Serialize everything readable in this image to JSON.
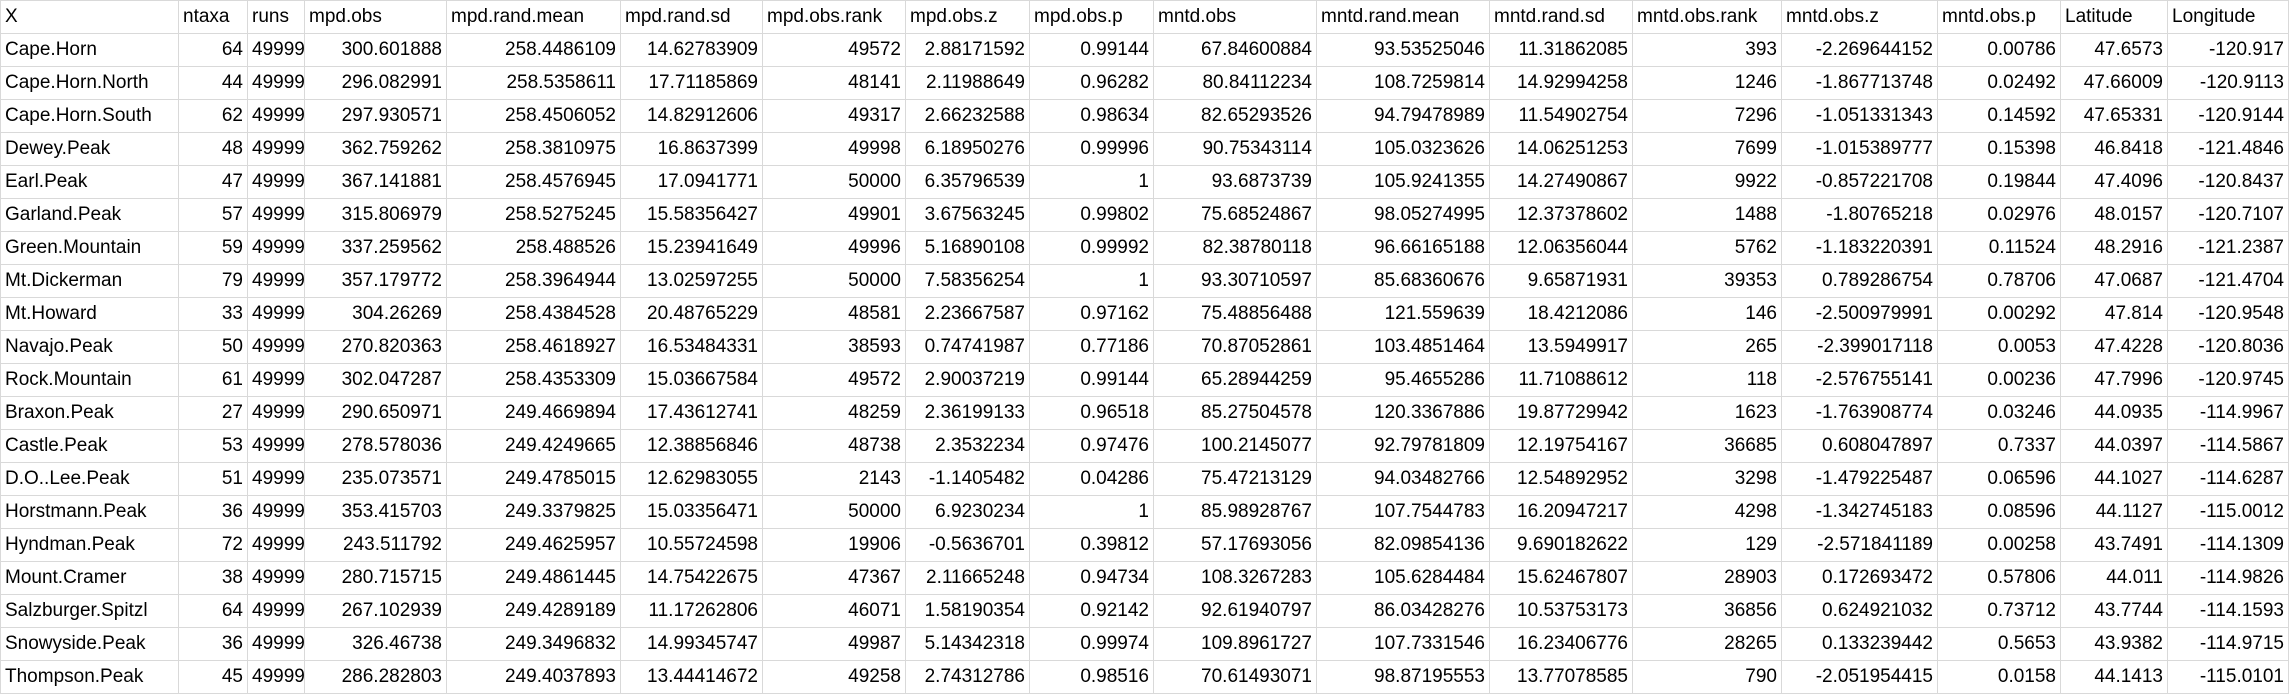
{
  "headers": [
    "X",
    "ntaxa",
    "runs",
    "mpd.obs",
    "mpd.rand.mean",
    "mpd.rand.sd",
    "mpd.obs.rank",
    "mpd.obs.z",
    "mpd.obs.p",
    "mntd.obs",
    "mntd.rand.mean",
    "mntd.rand.sd",
    "mntd.obs.rank",
    "mntd.obs.z",
    "mntd.obs.p",
    "Latitude",
    "Longitude"
  ],
  "rows": [
    [
      "Cape.Horn",
      "64",
      "49999",
      "300.601888",
      "258.4486109",
      "14.62783909",
      "49572",
      "2.88171592",
      "0.99144",
      "67.84600884",
      "93.53525046",
      "11.31862085",
      "393",
      "-2.269644152",
      "0.00786",
      "47.6573",
      "-120.917"
    ],
    [
      "Cape.Horn.North",
      "44",
      "49999",
      "296.082991",
      "258.5358611",
      "17.71185869",
      "48141",
      "2.11988649",
      "0.96282",
      "80.84112234",
      "108.7259814",
      "14.92994258",
      "1246",
      "-1.867713748",
      "0.02492",
      "47.66009",
      "-120.9113"
    ],
    [
      "Cape.Horn.South",
      "62",
      "49999",
      "297.930571",
      "258.4506052",
      "14.82912606",
      "49317",
      "2.66232588",
      "0.98634",
      "82.65293526",
      "94.79478989",
      "11.54902754",
      "7296",
      "-1.051331343",
      "0.14592",
      "47.65331",
      "-120.9144"
    ],
    [
      "Dewey.Peak",
      "48",
      "49999",
      "362.759262",
      "258.3810975",
      "16.8637399",
      "49998",
      "6.18950276",
      "0.99996",
      "90.75343114",
      "105.0323626",
      "14.06251253",
      "7699",
      "-1.015389777",
      "0.15398",
      "46.8418",
      "-121.4846"
    ],
    [
      "Earl.Peak",
      "47",
      "49999",
      "367.141881",
      "258.4576945",
      "17.0941771",
      "50000",
      "6.35796539",
      "1",
      "93.6873739",
      "105.9241355",
      "14.27490867",
      "9922",
      "-0.857221708",
      "0.19844",
      "47.4096",
      "-120.8437"
    ],
    [
      "Garland.Peak",
      "57",
      "49999",
      "315.806979",
      "258.5275245",
      "15.58356427",
      "49901",
      "3.67563245",
      "0.99802",
      "75.68524867",
      "98.05274995",
      "12.37378602",
      "1488",
      "-1.80765218",
      "0.02976",
      "48.0157",
      "-120.7107"
    ],
    [
      "Green.Mountain",
      "59",
      "49999",
      "337.259562",
      "258.488526",
      "15.23941649",
      "49996",
      "5.16890108",
      "0.99992",
      "82.38780118",
      "96.66165188",
      "12.06356044",
      "5762",
      "-1.183220391",
      "0.11524",
      "48.2916",
      "-121.2387"
    ],
    [
      "Mt.Dickerman",
      "79",
      "49999",
      "357.179772",
      "258.3964944",
      "13.02597255",
      "50000",
      "7.58356254",
      "1",
      "93.30710597",
      "85.68360676",
      "9.65871931",
      "39353",
      "0.789286754",
      "0.78706",
      "47.0687",
      "-121.4704"
    ],
    [
      "Mt.Howard",
      "33",
      "49999",
      "304.26269",
      "258.4384528",
      "20.48765229",
      "48581",
      "2.23667587",
      "0.97162",
      "75.48856488",
      "121.559639",
      "18.4212086",
      "146",
      "-2.500979991",
      "0.00292",
      "47.814",
      "-120.9548"
    ],
    [
      "Navajo.Peak",
      "50",
      "49999",
      "270.820363",
      "258.4618927",
      "16.53484331",
      "38593",
      "0.74741987",
      "0.77186",
      "70.87052861",
      "103.4851464",
      "13.5949917",
      "265",
      "-2.399017118",
      "0.0053",
      "47.4228",
      "-120.8036"
    ],
    [
      "Rock.Mountain",
      "61",
      "49999",
      "302.047287",
      "258.4353309",
      "15.03667584",
      "49572",
      "2.90037219",
      "0.99144",
      "65.28944259",
      "95.4655286",
      "11.71088612",
      "118",
      "-2.576755141",
      "0.00236",
      "47.7996",
      "-120.9745"
    ],
    [
      "Braxon.Peak",
      "27",
      "49999",
      "290.650971",
      "249.4669894",
      "17.43612741",
      "48259",
      "2.36199133",
      "0.96518",
      "85.27504578",
      "120.3367886",
      "19.87729942",
      "1623",
      "-1.763908774",
      "0.03246",
      "44.0935",
      "-114.9967"
    ],
    [
      "Castle.Peak",
      "53",
      "49999",
      "278.578036",
      "249.4249665",
      "12.38856846",
      "48738",
      "2.3532234",
      "0.97476",
      "100.2145077",
      "92.79781809",
      "12.19754167",
      "36685",
      "0.608047897",
      "0.7337",
      "44.0397",
      "-114.5867"
    ],
    [
      "D.O..Lee.Peak",
      "51",
      "49999",
      "235.073571",
      "249.4785015",
      "12.62983055",
      "2143",
      "-1.1405482",
      "0.04286",
      "75.47213129",
      "94.03482766",
      "12.54892952",
      "3298",
      "-1.479225487",
      "0.06596",
      "44.1027",
      "-114.6287"
    ],
    [
      "Horstmann.Peak",
      "36",
      "49999",
      "353.415703",
      "249.3379825",
      "15.03356471",
      "50000",
      "6.9230234",
      "1",
      "85.98928767",
      "107.7544783",
      "16.20947217",
      "4298",
      "-1.342745183",
      "0.08596",
      "44.1127",
      "-115.0012"
    ],
    [
      "Hyndman.Peak",
      "72",
      "49999",
      "243.511792",
      "249.4625957",
      "10.55724598",
      "19906",
      "-0.5636701",
      "0.39812",
      "57.17693056",
      "82.09854136",
      "9.690182622",
      "129",
      "-2.571841189",
      "0.00258",
      "43.7491",
      "-114.1309"
    ],
    [
      "Mount.Cramer",
      "38",
      "49999",
      "280.715715",
      "249.4861445",
      "14.75422675",
      "47367",
      "2.11665248",
      "0.94734",
      "108.3267283",
      "105.6284484",
      "15.62467807",
      "28903",
      "0.172693472",
      "0.57806",
      "44.011",
      "-114.9826"
    ],
    [
      "Salzburger.Spitzl",
      "64",
      "49999",
      "267.102939",
      "249.4289189",
      "11.17262806",
      "46071",
      "1.58190354",
      "0.92142",
      "92.61940797",
      "86.03428276",
      "10.53753173",
      "36856",
      "0.624921032",
      "0.73712",
      "43.7744",
      "-114.1593"
    ],
    [
      "Snowyside.Peak",
      "36",
      "49999",
      "326.46738",
      "249.3496832",
      "14.99345747",
      "49987",
      "5.14342318",
      "0.99974",
      "109.8961727",
      "107.7331546",
      "16.23406776",
      "28265",
      "0.133239442",
      "0.5653",
      "43.9382",
      "-114.9715"
    ],
    [
      "Thompson.Peak",
      "45",
      "49999",
      "286.282803",
      "249.4037893",
      "13.44414672",
      "49258",
      "2.74312786",
      "0.98516",
      "70.61493071",
      "98.87195553",
      "13.77078585",
      "790",
      "-2.051954415",
      "0.0158",
      "44.1413",
      "-115.0101"
    ]
  ]
}
